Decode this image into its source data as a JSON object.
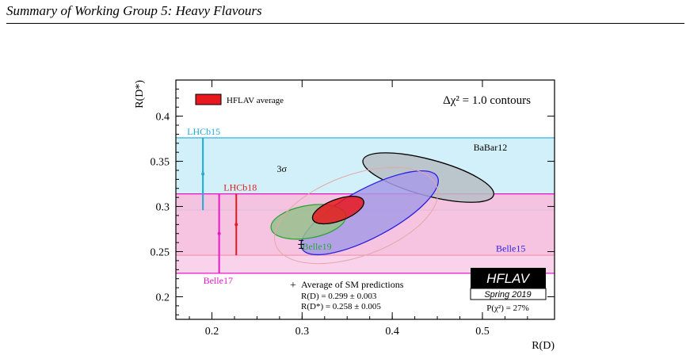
{
  "header": {
    "title": "Summary of Working Group 5: Heavy Flavours"
  },
  "chart_data": {
    "type": "scatter",
    "title": "",
    "xlabel": "R(D)",
    "ylabel": "R(D*)",
    "xlim": [
      0.16,
      0.58
    ],
    "ylim": [
      0.175,
      0.44
    ],
    "xticks": [
      "0.2",
      "0.3",
      "0.4",
      "0.5"
    ],
    "yticks": [
      "0.2",
      "0.25",
      "0.3",
      "0.35",
      "0.4"
    ],
    "contour_label": "Δχ² = 1.0 contours",
    "legend": {
      "label": "HFLAV average",
      "position": "top-left"
    },
    "bands": [
      {
        "name": "LHCb15",
        "center": 0.336,
        "low": 0.296,
        "high": 0.376,
        "x": 0.19,
        "color": "#1fa9d9",
        "fill": "#bfe9f7"
      },
      {
        "name": "LHCb18",
        "center": 0.28,
        "low": 0.246,
        "high": 0.314,
        "x": 0.227,
        "color": "#e8191e",
        "fill": "#f2b6c7"
      },
      {
        "name": "Belle17",
        "center": 0.27,
        "low": 0.226,
        "high": 0.314,
        "x": 0.208,
        "color": "#e619c8",
        "fill": "#f7c0e4"
      }
    ],
    "ellipses": [
      {
        "name": "BaBar12",
        "cx": 0.44,
        "cy": 0.332,
        "rx": 0.075,
        "ry": 0.02,
        "angle": 15,
        "fill": "#b7bec4",
        "stroke": "#000000",
        "label_xy": [
          0.49,
          0.362
        ]
      },
      {
        "name": "Belle15",
        "cx": 0.375,
        "cy": 0.293,
        "rx": 0.085,
        "ry": 0.027,
        "angle": -28,
        "fill": "#a79be6",
        "stroke": "#2a20e0",
        "label_xy": [
          0.515,
          0.25
        ]
      },
      {
        "name": "Belle19",
        "cx": 0.307,
        "cy": 0.283,
        "rx": 0.042,
        "ry": 0.018,
        "angle": -10,
        "fill": "#98c18c",
        "stroke": "#2aa33a",
        "label_xy": [
          0.3,
          0.252
        ]
      },
      {
        "name": "3σ",
        "cx": 0.36,
        "cy": 0.29,
        "rx": 0.095,
        "ry": 0.045,
        "angle": -20,
        "fill": "none",
        "stroke": "#e3a8a8",
        "label_xy": [
          0.272,
          0.338
        ]
      },
      {
        "name": "HFLAV average",
        "cx": 0.34,
        "cy": 0.296,
        "rx": 0.03,
        "ry": 0.012,
        "angle": -20,
        "fill": "#e8191e",
        "stroke": "#000000"
      }
    ],
    "sm_point": {
      "x": 0.299,
      "x_err": 0.003,
      "y": 0.258,
      "y_err": 0.005
    },
    "sm_text": [
      "Average of SM predictions",
      "R(D) = 0.299 ± 0.003",
      "R(D*) = 0.258 ± 0.005"
    ],
    "badge": {
      "name": "HFLAV",
      "edition": "Spring 2019"
    },
    "probability": "P(χ²) = 27%"
  }
}
